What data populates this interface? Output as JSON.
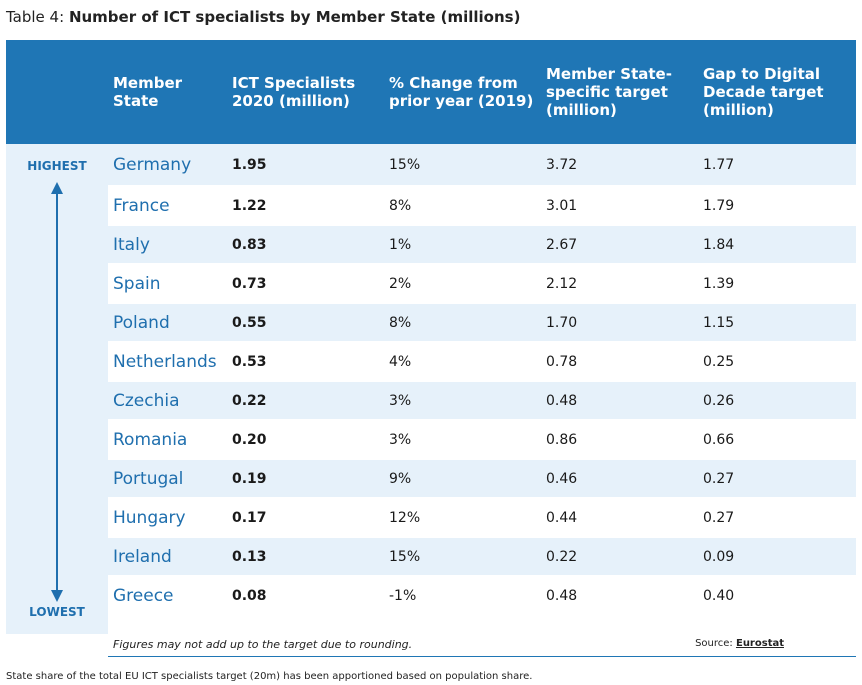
{
  "title": {
    "prefix": "Table 4: ",
    "main": "Number of ICT specialists by Member State (millions)"
  },
  "headers": {
    "state": "Member State",
    "ict": "ICT Specialists 2020 (million)",
    "change": "% Change from prior year (2019)",
    "target": "Member State-specific target (million)",
    "gap": "Gap to Digital Decade target (million)"
  },
  "side": {
    "highest": "HIGHEST",
    "lowest": "LOWEST"
  },
  "rows": [
    {
      "state": "Germany",
      "ict": "1.95",
      "change": "15%",
      "target": "3.72",
      "gap": "1.77"
    },
    {
      "state": "France",
      "ict": "1.22",
      "change": "8%",
      "target": "3.01",
      "gap": "1.79"
    },
    {
      "state": "Italy",
      "ict": "0.83",
      "change": "1%",
      "target": "2.67",
      "gap": "1.84"
    },
    {
      "state": "Spain",
      "ict": "0.73",
      "change": "2%",
      "target": "2.12",
      "gap": "1.39"
    },
    {
      "state": "Poland",
      "ict": "0.55",
      "change": "8%",
      "target": "1.70",
      "gap": "1.15"
    },
    {
      "state": "Netherlands",
      "ict": "0.53",
      "change": "4%",
      "target": "0.78",
      "gap": "0.25"
    },
    {
      "state": "Czechia",
      "ict": "0.22",
      "change": "3%",
      "target": "0.48",
      "gap": "0.26"
    },
    {
      "state": "Romania",
      "ict": "0.20",
      "change": "3%",
      "target": "0.86",
      "gap": "0.66"
    },
    {
      "state": "Portugal",
      "ict": "0.19",
      "change": "9%",
      "target": "0.46",
      "gap": "0.27"
    },
    {
      "state": "Hungary",
      "ict": "0.17",
      "change": "12%",
      "target": "0.44",
      "gap": "0.27"
    },
    {
      "state": "Ireland",
      "ict": "0.13",
      "change": "15%",
      "target": "0.22",
      "gap": "0.09"
    },
    {
      "state": "Greece",
      "ict": "0.08",
      "change": "-1%",
      "target": "0.48",
      "gap": "0.40"
    }
  ],
  "footnote": "Figures may not add up to the target due to rounding.",
  "source": {
    "label": "Source: ",
    "link": "Eurostat"
  },
  "bottom_note": "State share of the total EU ICT specialists target (20m) has been apportioned based on population share.",
  "colors": {
    "header_bg": "#1f76b5",
    "stripe": "#e6f1fa",
    "accent_text": "#1f6fae"
  },
  "icons": {
    "arrow": "double-arrow-vertical-icon"
  }
}
